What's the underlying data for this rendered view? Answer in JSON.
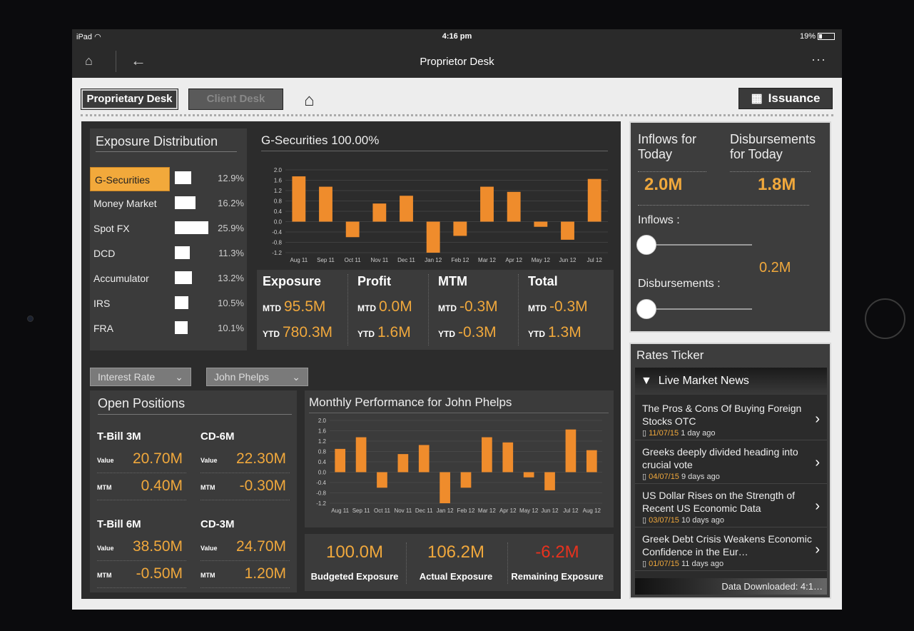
{
  "status": {
    "device": "iPad",
    "time": "4:16 pm",
    "battery": "19%"
  },
  "nav": {
    "title": "Proprietor Desk"
  },
  "tabs": {
    "proprietary": "Proprietary Desk",
    "client": "Client Desk",
    "issuance": "Issuance"
  },
  "exposure": {
    "title": "Exposure Distribution",
    "items": [
      {
        "name": "G-Securities",
        "pct": "12.9%",
        "value": 12.9
      },
      {
        "name": "Money Market",
        "pct": "16.2%",
        "value": 16.2
      },
      {
        "name": "Spot FX",
        "pct": "25.9%",
        "value": 25.9
      },
      {
        "name": "DCD",
        "pct": "11.3%",
        "value": 11.3
      },
      {
        "name": "Accumulator",
        "pct": "13.2%",
        "value": 13.2
      },
      {
        "name": "IRS",
        "pct": "10.5%",
        "value": 10.5
      },
      {
        "name": "FRA",
        "pct": "10.1%",
        "value": 10.1
      }
    ]
  },
  "metrics": {
    "cols": [
      {
        "head": "Exposure",
        "mtd": "95.5M",
        "ytd": "780.3M"
      },
      {
        "head": "Profit",
        "mtd": "0.0M",
        "ytd": "1.6M"
      },
      {
        "head": "MTM",
        "mtd": "-0.3M",
        "ytd": "-0.3M"
      },
      {
        "head": "Total",
        "mtd": "-0.3M",
        "ytd": "1.3M"
      }
    ],
    "mtd_label": "MTD",
    "ytd_label": "YTD"
  },
  "filters": {
    "type": "Interest Rate",
    "person": "John Phelps"
  },
  "positions": {
    "title": "Open Positions",
    "value_label": "Value",
    "mtm_label": "MTM",
    "items": [
      {
        "name": "T-Bill 3M",
        "value": "20.70M",
        "mtm": "0.40M"
      },
      {
        "name": "CD-6M",
        "value": "22.30M",
        "mtm": "-0.30M"
      },
      {
        "name": "T-Bill 6M",
        "value": "38.50M",
        "mtm": "-0.50M"
      },
      {
        "name": "CD-3M",
        "value": "24.70M",
        "mtm": "1.20M"
      }
    ]
  },
  "bottom": {
    "items": [
      {
        "value": "100.0M",
        "label": "Budgeted Exposure",
        "color": "#f0a83c"
      },
      {
        "value": "106.2M",
        "label": "Actual Exposure",
        "color": "#f0a83c"
      },
      {
        "value": "-6.2M",
        "label": "Remaining Exposure",
        "color": "#e8321e"
      }
    ]
  },
  "flows": {
    "inflows_head": "Inflows for Today",
    "disb_head": "Disbursements for Today",
    "inflows_value": "2.0M",
    "disb_value": "1.8M",
    "inflows_label": "Inflows :",
    "disb_label": "Disbursements :",
    "slider_value": "0.2M"
  },
  "ticker": {
    "title": "Rates Ticker",
    "news_head": "Live Market News",
    "items": [
      {
        "title": "The Pros & Cons Of Buying Foreign Stocks OTC",
        "date": "11/07/15",
        "ago": "1 day ago"
      },
      {
        "title": "Greeks deeply divided heading into crucial vote",
        "date": "04/07/15",
        "ago": "9 days ago"
      },
      {
        "title": "US Dollar Rises on the Strength of Recent US Economic Data",
        "date": "03/07/15",
        "ago": "10 days ago"
      },
      {
        "title": "Greek Debt Crisis Weakens Economic Confidence in the Eur…",
        "date": "01/07/15",
        "ago": "11 days ago"
      }
    ],
    "downloaded": "Data Downloaded: 4:1…"
  },
  "chart_data": [
    {
      "type": "bar",
      "title": "G-Securities 100.00%",
      "categories": [
        "Aug 11",
        "Sep 11",
        "Oct 11",
        "Nov 11",
        "Dec 11",
        "Jan 12",
        "Feb 12",
        "Mar 12",
        "Apr 12",
        "May 12",
        "Jun 12",
        "Jul 12"
      ],
      "values": [
        1.75,
        1.35,
        -0.6,
        0.7,
        1.0,
        -1.2,
        -0.55,
        1.35,
        1.15,
        -0.2,
        -0.7,
        1.65
      ],
      "ylim": [
        -1.2,
        2.0
      ],
      "yticks": [
        "2.0",
        "1.6",
        "1.2",
        "0.8",
        "0.4",
        "0.0",
        "-0.4",
        "-0.8",
        "-1.2"
      ],
      "color": "#ef8c2c"
    },
    {
      "type": "bar",
      "title": "Monthly Performance for John Phelps",
      "categories": [
        "Aug 11",
        "Sep 11",
        "Oct 11",
        "Nov 11",
        "Dec 11",
        "Jan 12",
        "Feb 12",
        "Mar 12",
        "Apr 12",
        "May 12",
        "Jun 12",
        "Jul 12",
        "Aug 12"
      ],
      "values": [
        0.9,
        1.35,
        -0.6,
        0.7,
        1.05,
        -1.2,
        -0.6,
        1.35,
        1.15,
        -0.2,
        -0.7,
        1.65,
        0.85
      ],
      "ylim": [
        -1.2,
        2.0
      ],
      "yticks": [
        "2.0",
        "1.6",
        "1.2",
        "0.8",
        "0.4",
        "0.0",
        "-0.4",
        "-0.8",
        "-1.2"
      ],
      "color": "#ef8c2c"
    }
  ]
}
